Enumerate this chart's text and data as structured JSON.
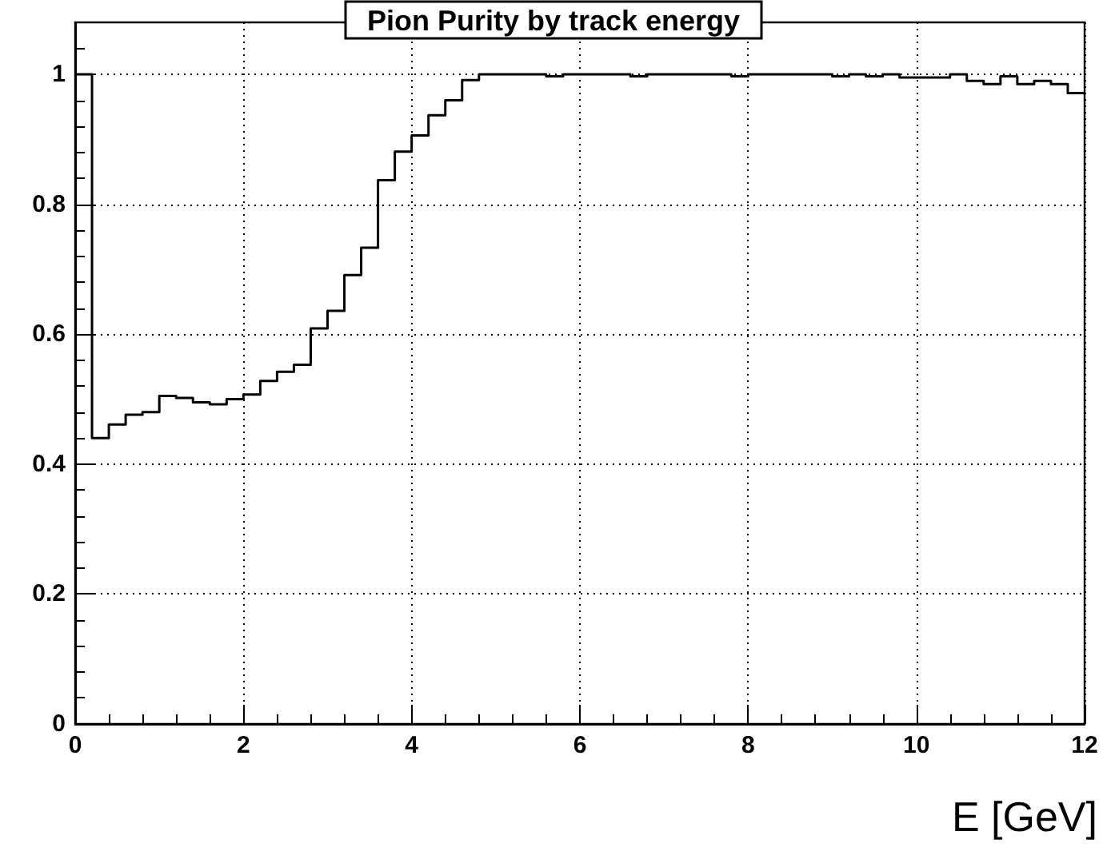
{
  "chart_data": {
    "type": "histogram",
    "title": "Pion Purity by track energy",
    "xlabel": "E [GeV]",
    "bins": [
      0,
      0.2,
      0.4,
      0.6,
      0.8,
      1,
      1.2,
      1.4,
      1.6,
      1.8,
      2,
      2.2,
      2.4,
      2.6,
      2.8,
      3,
      3.2,
      3.4,
      3.6,
      3.8,
      4,
      4.2,
      4.4,
      4.6,
      4.8,
      5,
      5.2,
      5.4,
      5.6,
      5.8,
      6,
      6.2,
      6.4,
      6.6,
      6.8,
      7,
      7.2,
      7.4,
      7.6,
      7.8,
      8,
      8.2,
      8.4,
      8.6,
      8.8,
      9,
      9.2,
      9.4,
      9.6,
      9.8,
      10,
      10.2,
      10.4,
      10.6,
      10.8,
      11,
      11.2,
      11.4,
      11.6,
      11.8,
      12
    ],
    "values": [
      1,
      0.44,
      0.461,
      0.476,
      0.48,
      0.505,
      0.502,
      0.495,
      0.492,
      0.5,
      0.507,
      0.528,
      0.542,
      0.553,
      0.609,
      0.636,
      0.691,
      0.733,
      0.837,
      0.881,
      0.906,
      0.937,
      0.96,
      0.991,
      1,
      1,
      1,
      1,
      0.997,
      1,
      1,
      1,
      1,
      0.997,
      1,
      1,
      1,
      1,
      1,
      0.997,
      1,
      1,
      1,
      1,
      1,
      0.997,
      1,
      0.997,
      1,
      0.995,
      0.995,
      0.995,
      1,
      0.99,
      0.985,
      0.997,
      0.985,
      0.99,
      0.985,
      0.971
    ],
    "color": "#000000",
    "xlim": [
      0,
      12
    ],
    "xticks": [
      0,
      2,
      4,
      6,
      8,
      10,
      12
    ],
    "ylim": [
      0,
      1.08
    ],
    "yticks": [
      0,
      0.2,
      0.4,
      0.6,
      0.8,
      1
    ],
    "grid": true
  }
}
